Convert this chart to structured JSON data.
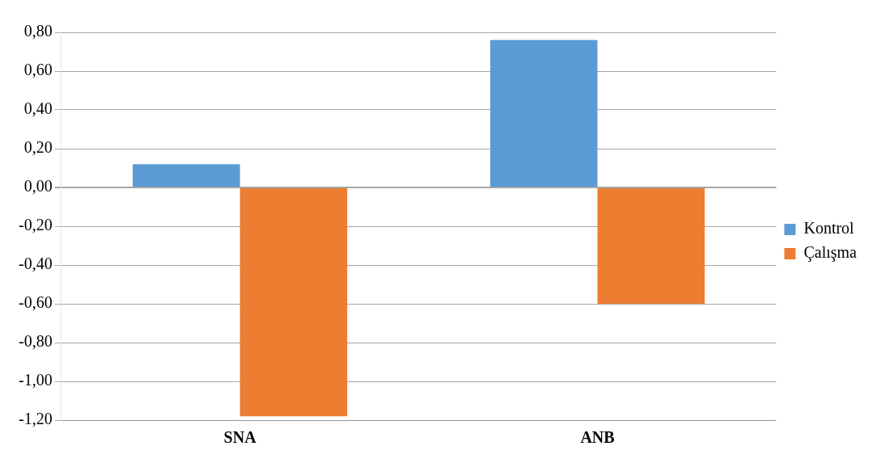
{
  "chart_data": {
    "type": "bar",
    "categories": [
      "SNA",
      "ANB"
    ],
    "series": [
      {
        "name": "Kontrol",
        "color": "#5b9bd5",
        "values": [
          0.12,
          0.76
        ]
      },
      {
        "name": "Çalışma",
        "color": "#ed7d31",
        "values": [
          -1.18,
          -0.6
        ]
      }
    ],
    "ylim": [
      -1.2,
      0.8
    ],
    "yticks": [
      {
        "value": 0.8,
        "label": "0,80"
      },
      {
        "value": 0.6,
        "label": "0,60"
      },
      {
        "value": 0.4,
        "label": "0,40"
      },
      {
        "value": 0.2,
        "label": "0,20"
      },
      {
        "value": 0,
        "label": "0,00"
      },
      {
        "value": -0.2,
        "label": "-0,20"
      },
      {
        "value": -0.4,
        "label": "-0,40"
      },
      {
        "value": -0.6,
        "label": "-0,60"
      },
      {
        "value": -0.8,
        "label": "-0,80"
      },
      {
        "value": -1,
        "label": "-1,00"
      },
      {
        "value": -1.2,
        "label": "-1,20"
      }
    ],
    "grid": "y",
    "legend": "right"
  }
}
